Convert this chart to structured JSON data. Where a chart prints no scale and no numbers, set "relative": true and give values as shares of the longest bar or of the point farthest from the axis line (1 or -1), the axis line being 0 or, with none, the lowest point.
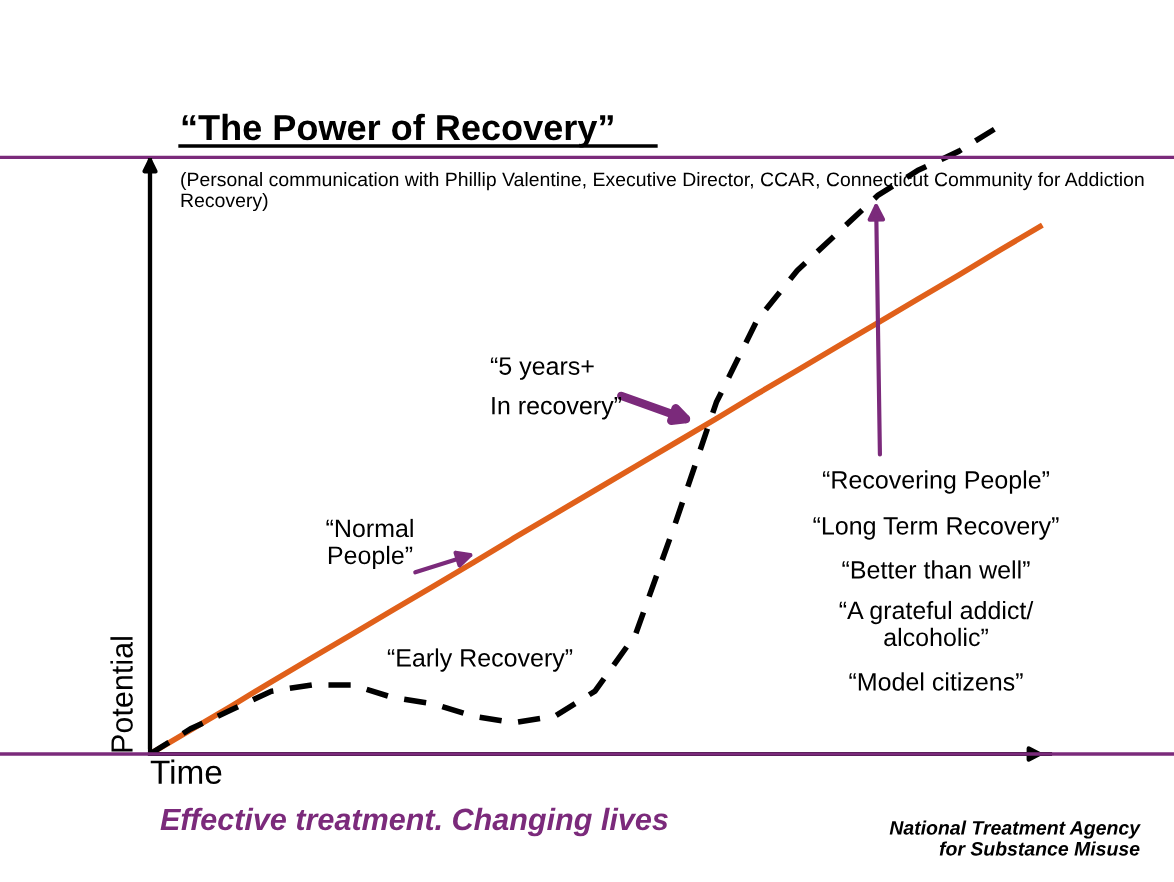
{
  "chart_data": {
    "type": "line",
    "relative": true,
    "title": "“The Power of Recovery”",
    "subtitle": "(Personal communication with Phillip Valentine, Executive Director, CCAR, Connecticut Community for Addiction Recovery)",
    "xlabel": "Time",
    "ylabel": "Potential",
    "categories": [
      null,
      null,
      null,
      null,
      null,
      null,
      null,
      null,
      null,
      null,
      null,
      null,
      null,
      null,
      null,
      null,
      null,
      null,
      null,
      null,
      null,
      null,
      null
    ],
    "series": [
      {
        "color": "#e0601a",
        "line_style": "solid",
        "values": [
          0,
          0.038,
          0.076,
          0.115,
          0.153,
          0.191,
          0.229,
          0.267,
          0.305,
          0.344,
          0.382,
          0.42,
          0.458,
          0.496,
          0.534,
          0.573,
          0.611,
          0.649,
          0.687,
          0.725,
          0.763,
          0.802,
          0.84
        ]
      },
      {
        "color": "#000000",
        "line_style": "dashed",
        "values": [
          0,
          0.04,
          0.07,
          0.1,
          0.11,
          0.11,
          0.09,
          0.08,
          0.06,
          0.05,
          0.06,
          0.1,
          0.19,
          0.37,
          0.56,
          0.69,
          0.77,
          0.83,
          0.89,
          0.93,
          0.96,
          1.0,
          null
        ]
      }
    ],
    "ref_lines": [
      {
        "axis": "y",
        "value": 0.95,
        "color": "#7b2a7b"
      }
    ],
    "annotations": [
      "“Normal\nPeople”",
      "“Early Recovery”",
      "“5 years+\nIn recovery”",
      "“Recovering People”",
      "“Long Term Recovery”",
      "“Better than well”",
      "“A grateful addict/\nalcoholic”",
      "“Model citizens”",
      "Effective treatment. Changing lives",
      "National Treatment Agency\nfor Substance Misuse"
    ],
    "legend": false,
    "marker": "none"
  }
}
